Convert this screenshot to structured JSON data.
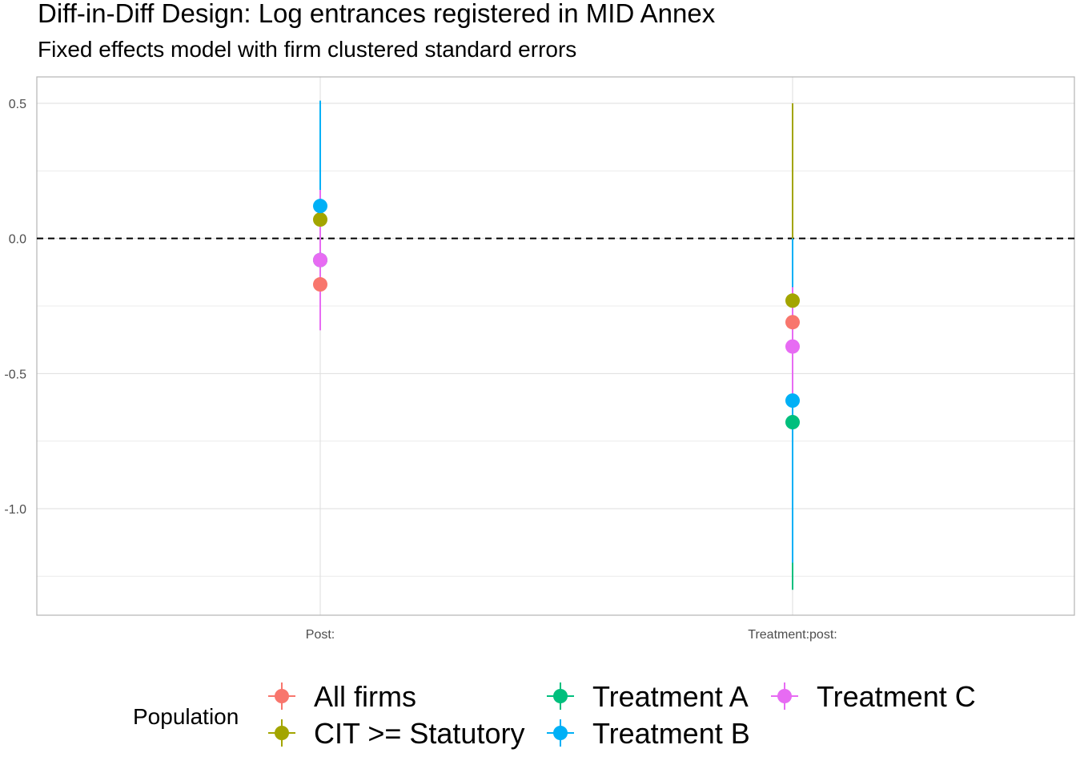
{
  "chart_data": {
    "type": "scatter",
    "title": "Diff-in-Diff Design: Log entrances registered in MID Annex",
    "subtitle": "Fixed effects model with firm clustered standard errors",
    "xlabel": "",
    "ylabel": "",
    "categories": [
      "Post:",
      "Treatment:post:"
    ],
    "ylim": [
      -1.4,
      0.6
    ],
    "yticks": [
      -1.0,
      -0.5,
      0.0,
      0.5
    ],
    "ytick_labels": [
      "-1.0",
      "-0.5",
      "0.0",
      "0.5"
    ],
    "reference_line": 0,
    "grid": true,
    "legend": {
      "title": "Population",
      "position": "bottom"
    },
    "series": [
      {
        "name": "All firms",
        "color": "#F8766D",
        "estimates": [
          -0.17,
          -0.31
        ],
        "lower": [
          -0.23,
          -0.52
        ],
        "upper": [
          -0.11,
          -0.1
        ]
      },
      {
        "name": "CIT >= Statutory",
        "color": "#A3A500",
        "estimates": [
          0.07,
          -0.23
        ],
        "lower": [
          -0.17,
          -0.96
        ],
        "upper": [
          0.31,
          0.5
        ]
      },
      {
        "name": "Treatment A",
        "color": "#00BF7D",
        "estimates": [
          -0.08,
          -0.68
        ],
        "lower": [
          -0.2,
          -1.3
        ],
        "upper": [
          0.04,
          -0.06
        ]
      },
      {
        "name": "Treatment B",
        "color": "#00B0F6",
        "estimates": [
          0.12,
          -0.6
        ],
        "lower": [
          -0.27,
          -1.2
        ],
        "upper": [
          0.51,
          0.0
        ]
      },
      {
        "name": "Treatment C",
        "color": "#E76BF3",
        "estimates": [
          -0.08,
          -0.4
        ],
        "lower": [
          -0.34,
          -0.62
        ],
        "upper": [
          0.18,
          -0.18
        ]
      }
    ]
  }
}
